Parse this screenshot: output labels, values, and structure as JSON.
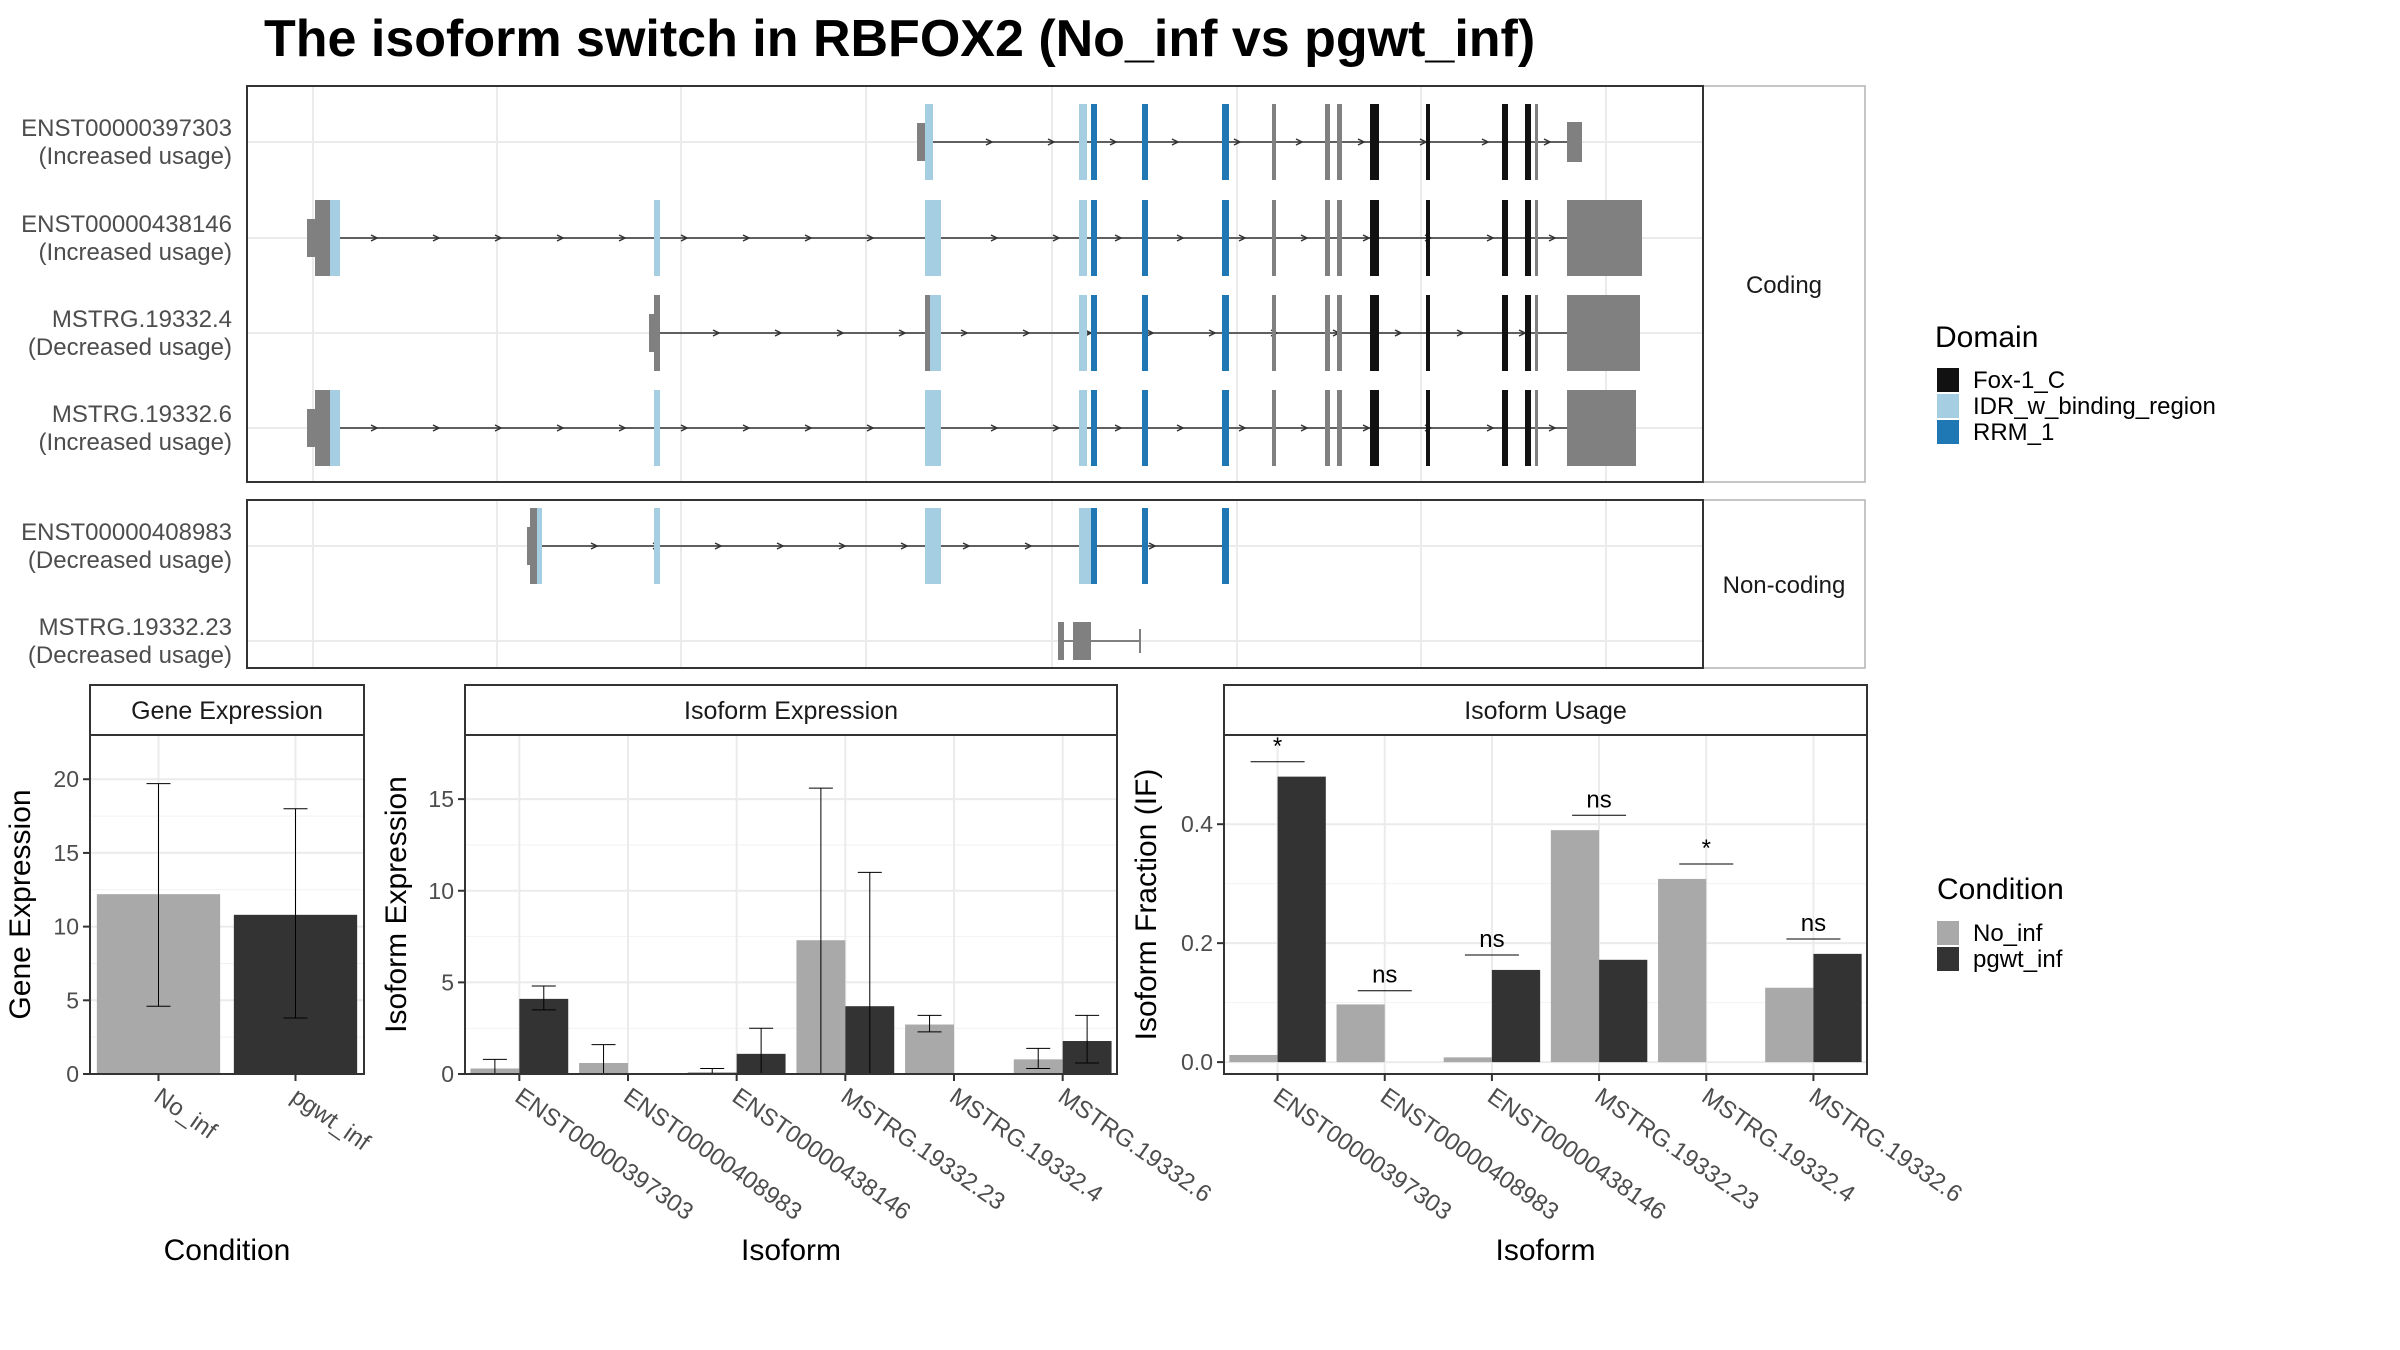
{
  "title": "The isoform switch in RBFOX2 (No_inf vs pgwt_inf)",
  "colors": {
    "exon": "#808080",
    "domain_Fox-1_C": "#111111",
    "domain_IDR_w_binding_region": "#a6cee3",
    "domain_RRM_1": "#1f78b4",
    "No_inf": "#a9a9a9",
    "pgwt_inf": "#333333",
    "panel_border": "#333333",
    "strip_border": "#b3b3b3",
    "grid": "#ebebeb",
    "tick_text": "#4d4d4d"
  },
  "structure": {
    "coding_label": "Coding",
    "noncoding_label": "Non-coding",
    "transcripts": [
      {
        "id": "ENST00000397303",
        "usage": "(Increased usage)",
        "group": "coding",
        "start": 1051,
        "end": 1200,
        "exons": [
          [
            1051,
            1056
          ],
          [
            1056,
            1063
          ],
          [
            1168,
            1176
          ],
          [
            1176,
            1178
          ],
          [
            1178,
            1183
          ],
          [
            1199,
            1200
          ]
        ],
        "domains": [
          [
            1052,
            1057,
            "IDR"
          ],
          [
            1138,
            1141,
            "IDR"
          ],
          [
            1140,
            1144,
            "RRM"
          ],
          [
            1156,
            1158,
            "RRM"
          ],
          [
            1181,
            1183,
            "RRM"
          ],
          [
            1195,
            1197,
            "E"
          ],
          [
            1212,
            1214,
            "E"
          ],
          [
            1218,
            1220,
            "E"
          ],
          [
            1228,
            1231,
            "FOX"
          ],
          [
            1246,
            1248,
            "FOX"
          ],
          [
            1271,
            1273,
            "FOX"
          ],
          [
            1278,
            1281,
            "FOX"
          ]
        ]
      },
      {
        "id": "ENST00000438146",
        "usage": "(Increased usage)",
        "group": "coding",
        "start": 0,
        "end": 1300,
        "exons": [],
        "domains": []
      },
      {
        "id": "MSTRG.19332.4",
        "usage": "(Decreased usage)",
        "group": "coding",
        "start": 0,
        "end": 1300,
        "exons": [],
        "domains": []
      },
      {
        "id": "MSTRG.19332.6",
        "usage": "(Increased usage)",
        "group": "coding",
        "start": 0,
        "end": 1300,
        "exons": [],
        "domains": []
      },
      {
        "id": "ENST00000408983",
        "usage": "(Decreased usage)",
        "group": "noncoding",
        "start": 0,
        "end": 1300,
        "exons": [],
        "domains": []
      },
      {
        "id": "MSTRG.19332.23",
        "usage": "(Decreased usage)",
        "group": "noncoding",
        "start": 0,
        "end": 1300,
        "exons": [],
        "domains": []
      }
    ]
  },
  "legend_domain": {
    "title": "Domain",
    "items": [
      {
        "label": "Fox-1_C",
        "color": "#111111"
      },
      {
        "label": "IDR_w_binding_region",
        "color": "#a6cee3"
      },
      {
        "label": "RRM_1",
        "color": "#1f78b4"
      }
    ]
  },
  "legend_condition": {
    "title": "Condition",
    "items": [
      {
        "label": "No_inf",
        "color": "#a9a9a9"
      },
      {
        "label": "pgwt_inf",
        "color": "#333333"
      }
    ]
  },
  "chart_data": [
    {
      "type": "bar",
      "title": "Gene Expression",
      "xlabel": "Condition",
      "ylabel": "Gene Expression",
      "ylim": [
        0,
        23
      ],
      "yticks": [
        0,
        5,
        10,
        15,
        20
      ],
      "categories": [
        "No_inf",
        "pgwt_inf"
      ],
      "values": [
        12.2,
        10.8
      ],
      "errors": [
        [
          4.6,
          19.7
        ],
        [
          3.8,
          18.0
        ]
      ],
      "grid": true
    },
    {
      "type": "bar",
      "title": "Isoform Expression",
      "xlabel": "Isoform",
      "ylabel": "Isoform Expression",
      "ylim": [
        0,
        18.5
      ],
      "yticks": [
        0,
        5,
        10,
        15
      ],
      "categories": [
        "ENST00000397303",
        "ENST00000408983",
        "ENST00000438146",
        "MSTRG.19332.23",
        "MSTRG.19332.4",
        "MSTRG.19332.6"
      ],
      "series": [
        {
          "name": "No_inf",
          "values": [
            0.3,
            0.6,
            0.1,
            7.3,
            2.7,
            0.8
          ],
          "errors": [
            [
              0.0,
              0.8
            ],
            [
              0.0,
              1.6
            ],
            [
              0.0,
              0.3
            ],
            [
              0.0,
              15.6
            ],
            [
              2.3,
              3.2
            ],
            [
              0.3,
              1.4
            ]
          ]
        },
        {
          "name": "pgwt_inf",
          "values": [
            4.1,
            0.0,
            1.1,
            3.7,
            0.0,
            1.8
          ],
          "errors": [
            [
              3.5,
              4.8
            ],
            [
              0.0,
              0.0
            ],
            [
              0.0,
              2.5
            ],
            [
              0.0,
              11.0
            ],
            [
              0.0,
              0.0
            ],
            [
              0.6,
              3.2
            ]
          ]
        }
      ],
      "grid": true
    },
    {
      "type": "bar",
      "title": "Isoform Usage",
      "xlabel": "Isoform",
      "ylabel": "Isoform Fraction (IF)",
      "ylim": [
        -0.02,
        0.55
      ],
      "yticks": [
        0.0,
        0.2,
        0.4
      ],
      "ytick_labels": [
        "0.0",
        "0.2",
        "0.4"
      ],
      "categories": [
        "ENST00000397303",
        "ENST00000408983",
        "ENST00000438146",
        "MSTRG.19332.23",
        "MSTRG.19332.4",
        "MSTRG.19332.6"
      ],
      "series": [
        {
          "name": "No_inf",
          "values": [
            0.012,
            0.097,
            0.008,
            0.39,
            0.308,
            0.125
          ]
        },
        {
          "name": "pgwt_inf",
          "values": [
            0.48,
            0.0,
            0.155,
            0.172,
            0.0,
            0.182
          ]
        }
      ],
      "significance": [
        "*",
        "ns",
        "ns",
        "ns",
        "*",
        "ns"
      ],
      "significance_y": [
        0.505,
        0.12,
        0.18,
        0.415,
        0.333,
        0.207
      ],
      "grid": true
    }
  ]
}
